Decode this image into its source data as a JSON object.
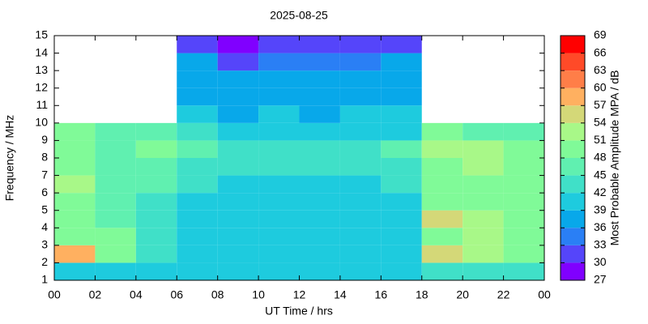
{
  "chart_data": {
    "type": "heatmap",
    "title": "2025-08-25",
    "xlabel": "UT Time / hrs",
    "ylabel": "Frequency / MHz",
    "xlim": [
      0,
      24
    ],
    "xticks": [
      {
        "value": 0,
        "label": "00"
      },
      {
        "value": 2,
        "label": "02"
      },
      {
        "value": 4,
        "label": "04"
      },
      {
        "value": 6,
        "label": "06"
      },
      {
        "value": 8,
        "label": "08"
      },
      10,
      12,
      14,
      16,
      18,
      20,
      22,
      {
        "value": 24,
        "label": "00"
      }
    ],
    "ylim": [
      1,
      15
    ],
    "yticks": [
      1,
      2,
      3,
      4,
      5,
      6,
      7,
      8,
      9,
      10,
      11,
      12,
      13,
      14,
      15
    ],
    "xbins": [
      0,
      2,
      4,
      6,
      8,
      10,
      12,
      14,
      16,
      18,
      20,
      22,
      24
    ],
    "ybins": [
      1,
      2,
      3,
      4,
      5,
      6,
      7,
      8,
      9,
      10,
      11,
      12,
      13,
      14,
      15
    ],
    "values": [
      [
        40,
        40,
        39,
        40,
        40,
        40,
        40,
        40,
        40,
        42,
        42,
        42
      ],
      [
        58,
        50,
        42,
        40,
        40,
        40,
        40,
        40,
        40,
        55,
        52,
        50
      ],
      [
        50,
        48,
        42,
        40,
        40,
        40,
        40,
        40,
        40,
        50,
        52,
        48
      ],
      [
        48,
        45,
        42,
        40,
        40,
        40,
        40,
        40,
        40,
        55,
        52,
        50
      ],
      [
        48,
        45,
        42,
        41,
        40,
        41,
        40,
        40,
        41,
        48,
        48,
        48
      ],
      [
        52,
        47,
        45,
        42,
        41,
        41,
        41,
        41,
        42,
        50,
        50,
        50
      ],
      [
        48,
        47,
        45,
        43,
        42,
        42,
        42,
        42,
        43,
        50,
        52,
        48
      ],
      [
        50,
        47,
        48,
        45,
        44,
        44,
        44,
        44,
        45,
        52,
        52,
        50
      ],
      [
        48,
        46,
        45,
        42,
        40,
        40,
        40,
        40,
        41,
        48,
        46,
        46
      ],
      [
        null,
        null,
        null,
        39,
        38,
        39,
        38,
        39,
        39,
        null,
        null,
        null
      ],
      [
        null,
        null,
        null,
        38,
        37,
        38,
        38,
        38,
        38,
        null,
        null,
        null
      ],
      [
        null,
        null,
        null,
        38,
        37,
        38,
        38,
        37,
        38,
        null,
        null,
        null
      ],
      [
        null,
        null,
        null,
        36,
        32,
        34,
        35,
        33,
        36,
        null,
        null,
        null
      ],
      [
        null,
        null,
        null,
        30,
        29,
        30,
        30,
        30,
        31,
        null,
        null,
        null
      ]
    ],
    "colorbar": {
      "label": "Most Probable Amplitude MPA / dB",
      "lim": [
        27,
        69
      ],
      "ticks": [
        27,
        30,
        33,
        36,
        39,
        42,
        45,
        48,
        51,
        54,
        57,
        60,
        63,
        66,
        69
      ],
      "colors": [
        "#8000ff",
        "#5545fa",
        "#2a7ff5",
        "#08a8ea",
        "#1ecbde",
        "#40e0c8",
        "#60f0b0",
        "#80fa98",
        "#a8f888",
        "#d4d878",
        "#ffb060",
        "#ff7e48",
        "#ff4a28",
        "#ff0000"
      ]
    }
  }
}
